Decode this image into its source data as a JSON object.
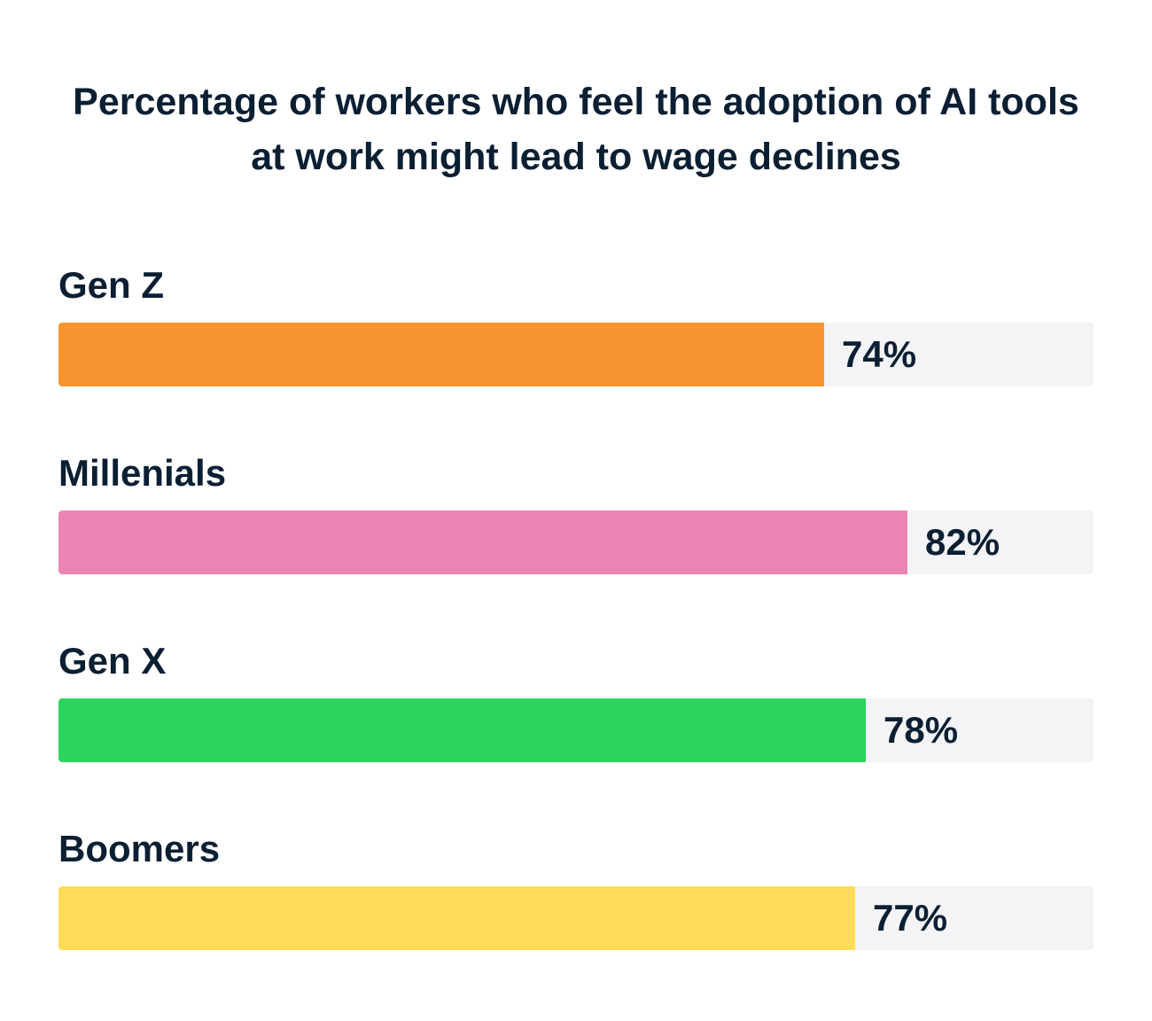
{
  "chart_data": {
    "type": "bar",
    "orientation": "horizontal",
    "title": "Percentage of workers who feel the adoption of AI tools at work might lead to wage declines",
    "categories": [
      "Gen Z",
      "Millenials",
      "Gen X",
      "Boomers"
    ],
    "values": [
      74,
      82,
      78,
      77
    ],
    "value_labels": [
      "74%",
      "82%",
      "78%",
      "77%"
    ],
    "colors": [
      "#f7942f",
      "#eb84b3",
      "#2dd35f",
      "#ffdc58"
    ],
    "xlim": [
      0,
      100
    ],
    "unit": "%",
    "grid": false,
    "legend": "none"
  },
  "colors": {
    "track": "#f4f4f6",
    "text": "#0b1f33",
    "background": "#ffffff"
  }
}
